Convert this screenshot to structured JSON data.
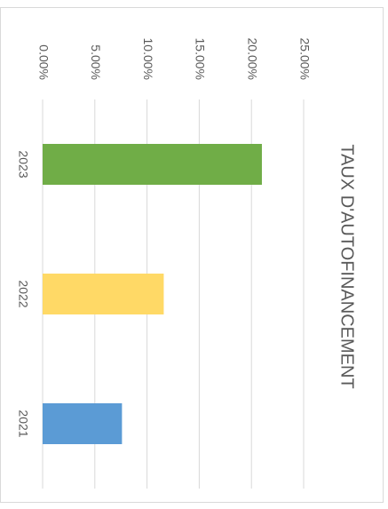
{
  "chart_data": {
    "type": "bar",
    "title": "TAUX D'AUTOFINANCEMENT",
    "categories": [
      "2023",
      "2022",
      "2021"
    ],
    "values": [
      21,
      11.6,
      7.6
    ],
    "colors": [
      "#70ad47",
      "#ffd966",
      "#5b9bd5"
    ],
    "ylim": [
      0,
      25
    ],
    "yticks": [
      {
        "value": 0,
        "label": "0.00%"
      },
      {
        "value": 5,
        "label": "5.00%"
      },
      {
        "value": 10,
        "label": "10.00%"
      },
      {
        "value": 15,
        "label": "15.00%"
      },
      {
        "value": 20,
        "label": "20.00%"
      },
      {
        "value": 25,
        "label": "25.00%"
      }
    ],
    "grid": true
  }
}
